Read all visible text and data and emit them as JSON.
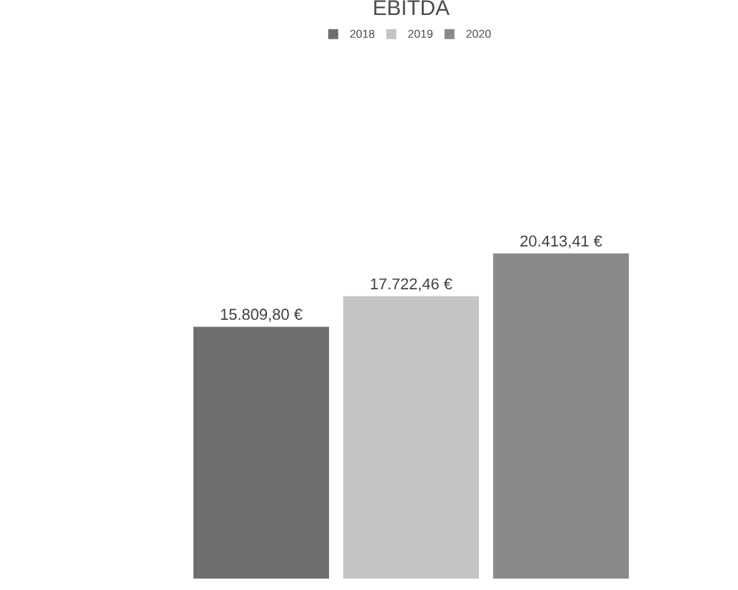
{
  "chart_data": {
    "type": "bar",
    "title": "EBITDA",
    "categories": [
      null
    ],
    "series": [
      {
        "name": "2018",
        "color": "#6e6e6e",
        "values": [
          15809.8
        ],
        "value_labels": [
          "15.809,80 €"
        ]
      },
      {
        "name": "2019",
        "color": "#c4c4c4",
        "values": [
          17722.46
        ],
        "value_labels": [
          "17.722,46 €"
        ]
      },
      {
        "name": "2020",
        "color": "#8a8a8a",
        "values": [
          20413.41
        ],
        "value_labels": [
          "20.413,41 €"
        ]
      }
    ],
    "legend": "top"
  }
}
